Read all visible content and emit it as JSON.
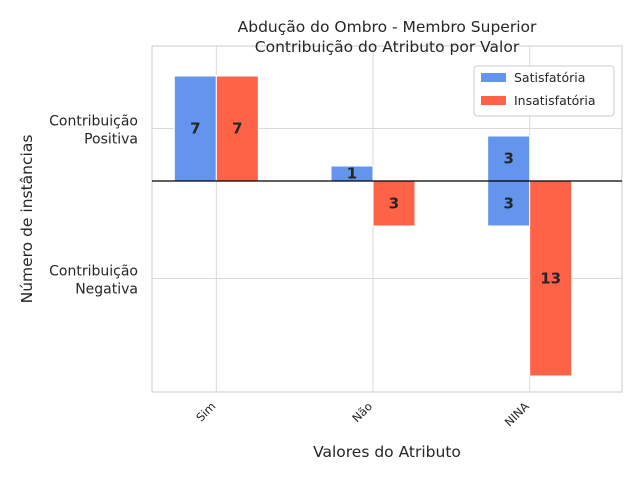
{
  "chart_data": {
    "type": "bar",
    "title": "Abdução do Ombro - Membro Superior",
    "subtitle": "Contribuição do Atributo por Valor",
    "xlabel": "Valores do Atributo",
    "ylabel": "Número de instâncias",
    "categories": [
      "Sim",
      "Não",
      "NINA"
    ],
    "ytick_labels": [
      {
        "value": 3.5,
        "line1": "Contribuição",
        "line2": "Positiva"
      },
      {
        "value": -6.5,
        "line1": "Contribuição",
        "line2": "Negativa"
      }
    ],
    "ylim": [
      -14.2,
      9
    ],
    "grid": true,
    "legend_position": "top-right",
    "series": [
      {
        "name": "Satisfatória",
        "color": "#6495ed",
        "positive": [
          7,
          1,
          3
        ],
        "negative": [
          0,
          0,
          3
        ]
      },
      {
        "name": "Insatisfatória",
        "color": "#ff6347",
        "positive": [
          7,
          0,
          0
        ],
        "negative": [
          0,
          3,
          13
        ]
      }
    ]
  }
}
